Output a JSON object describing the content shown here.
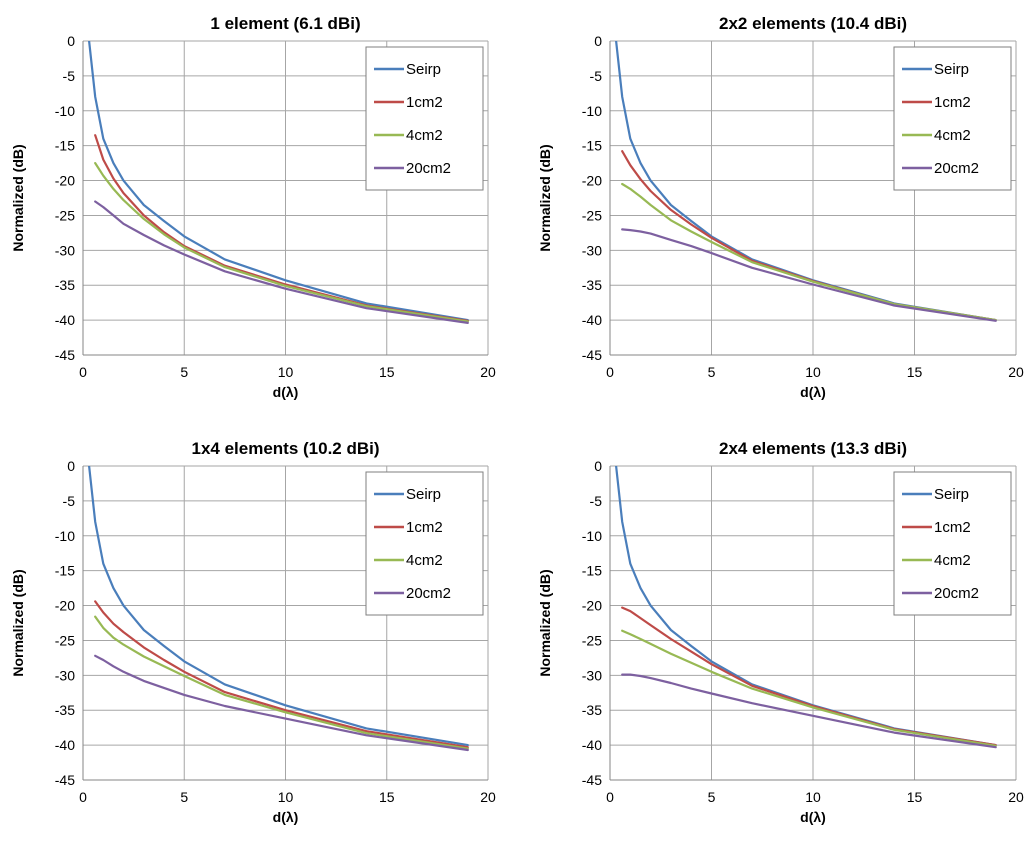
{
  "colors": {
    "grid": "#a6a6a6",
    "axis": "#868686",
    "series": [
      "#4a7ebb",
      "#be4b48",
      "#98b954",
      "#7d60a0"
    ]
  },
  "chart_data": [
    {
      "type": "line",
      "title": "1 element (6.1 dBi)",
      "xlabel": "d(λ)",
      "ylabel": "Normalized (dB)",
      "xlim": [
        0,
        20
      ],
      "ylim": [
        -45,
        0
      ],
      "xticks": [
        "0",
        "5",
        "10",
        "15",
        "20"
      ],
      "yticks": [
        "0",
        "-5",
        "-10",
        "-15",
        "-20",
        "-25",
        "-30",
        "-35",
        "-40",
        "-45"
      ],
      "grid": true,
      "legend_position": "top-right",
      "series": [
        {
          "name": "Seirp",
          "x": [
            0.3,
            0.6,
            1,
            1.5,
            2,
            3,
            4,
            5,
            7,
            10,
            14,
            19
          ],
          "y": [
            0,
            -8,
            -14,
            -17.5,
            -20,
            -23.5,
            -25.8,
            -28,
            -31.3,
            -34.3,
            -37.6,
            -40
          ]
        },
        {
          "name": "1cm2",
          "x": [
            0.6,
            1,
            1.5,
            2,
            3,
            4,
            5,
            7,
            10,
            14,
            19
          ],
          "y": [
            -13.5,
            -17,
            -19.7,
            -21.8,
            -25,
            -27.4,
            -29.4,
            -32.2,
            -34.9,
            -37.9,
            -40.1
          ]
        },
        {
          "name": "4cm2",
          "x": [
            0.6,
            1,
            1.5,
            2,
            3,
            4,
            5,
            7,
            10,
            14,
            19
          ],
          "y": [
            -17.5,
            -19.3,
            -21.2,
            -22.8,
            -25.5,
            -27.7,
            -29.6,
            -32.4,
            -35.1,
            -38,
            -40.2
          ]
        },
        {
          "name": "20cm2",
          "x": [
            0.6,
            1,
            1.5,
            2,
            3,
            4,
            5,
            7,
            10,
            14,
            19
          ],
          "y": [
            -23,
            -23.8,
            -25,
            -26.2,
            -27.8,
            -29.3,
            -30.6,
            -33,
            -35.5,
            -38.3,
            -40.4
          ]
        }
      ]
    },
    {
      "type": "line",
      "title": "2x2 elements (10.4 dBi)",
      "xlabel": "d(λ)",
      "ylabel": "Normalized (dB)",
      "xlim": [
        0,
        20
      ],
      "ylim": [
        -45,
        0
      ],
      "xticks": [
        "0",
        "5",
        "10",
        "15",
        "20"
      ],
      "yticks": [
        "0",
        "-5",
        "-10",
        "-15",
        "-20",
        "-25",
        "-30",
        "-35",
        "-40",
        "-45"
      ],
      "grid": true,
      "legend_position": "top-right",
      "series": [
        {
          "name": "Seirp",
          "x": [
            0.3,
            0.6,
            1,
            1.5,
            2,
            3,
            4,
            5,
            7,
            10,
            14,
            19
          ],
          "y": [
            0,
            -8,
            -14,
            -17.5,
            -20,
            -23.5,
            -25.8,
            -28,
            -31.3,
            -34.3,
            -37.6,
            -40
          ]
        },
        {
          "name": "1cm2",
          "x": [
            0.6,
            1,
            1.5,
            2,
            3,
            4,
            5,
            7,
            10,
            14,
            19
          ],
          "y": [
            -15.8,
            -17.8,
            -19.8,
            -21.5,
            -24.2,
            -26.3,
            -28.2,
            -31.5,
            -34.4,
            -37.7,
            -40
          ]
        },
        {
          "name": "4cm2",
          "x": [
            0.6,
            1,
            1.5,
            2,
            3,
            4,
            5,
            7,
            10,
            14,
            19
          ],
          "y": [
            -20.5,
            -21.2,
            -22.3,
            -23.5,
            -25.7,
            -27.3,
            -28.8,
            -31.7,
            -34.5,
            -37.7,
            -40
          ]
        },
        {
          "name": "20cm2",
          "x": [
            0.6,
            1,
            1.5,
            2,
            3,
            4,
            5,
            7,
            10,
            14,
            19
          ],
          "y": [
            -27,
            -27.1,
            -27.3,
            -27.6,
            -28.5,
            -29.4,
            -30.4,
            -32.5,
            -34.9,
            -37.9,
            -40.1
          ]
        }
      ]
    },
    {
      "type": "line",
      "title": "1x4 elements (10.2 dBi)",
      "xlabel": "d(λ)",
      "ylabel": "Normalized (dB)",
      "xlim": [
        0,
        20
      ],
      "ylim": [
        -45,
        0
      ],
      "xticks": [
        "0",
        "5",
        "10",
        "15",
        "20"
      ],
      "yticks": [
        "0",
        "-5",
        "-10",
        "-15",
        "-20",
        "-25",
        "-30",
        "-35",
        "-40",
        "-45"
      ],
      "grid": true,
      "legend_position": "top-right",
      "series": [
        {
          "name": "Seirp",
          "x": [
            0.3,
            0.6,
            1,
            1.5,
            2,
            3,
            4,
            5,
            7,
            10,
            14,
            19
          ],
          "y": [
            0,
            -8,
            -14,
            -17.5,
            -20,
            -23.5,
            -25.8,
            -28,
            -31.3,
            -34.3,
            -37.6,
            -40
          ]
        },
        {
          "name": "1cm2",
          "x": [
            0.6,
            1,
            1.5,
            2,
            3,
            4,
            5,
            7,
            10,
            14,
            19
          ],
          "y": [
            -19.4,
            -21,
            -22.6,
            -23.8,
            -26,
            -27.8,
            -29.5,
            -32.4,
            -35,
            -38,
            -40.3
          ]
        },
        {
          "name": "4cm2",
          "x": [
            0.6,
            1,
            1.5,
            2,
            3,
            4,
            5,
            7,
            10,
            14,
            19
          ],
          "y": [
            -21.6,
            -23.2,
            -24.6,
            -25.6,
            -27.3,
            -28.7,
            -30.1,
            -32.8,
            -35.3,
            -38.3,
            -40.5
          ]
        },
        {
          "name": "20cm2",
          "x": [
            0.6,
            1,
            1.5,
            2,
            3,
            4,
            5,
            7,
            10,
            14,
            19
          ],
          "y": [
            -27.2,
            -27.8,
            -28.7,
            -29.5,
            -30.8,
            -31.8,
            -32.8,
            -34.4,
            -36.2,
            -38.6,
            -40.7
          ]
        }
      ]
    },
    {
      "type": "line",
      "title": "2x4 elements (13.3 dBi)",
      "xlabel": "d(λ)",
      "ylabel": "Normalized (dB)",
      "xlim": [
        0,
        20
      ],
      "ylim": [
        -45,
        0
      ],
      "xticks": [
        "0",
        "5",
        "10",
        "15",
        "20"
      ],
      "yticks": [
        "0",
        "-5",
        "-10",
        "-15",
        "-20",
        "-25",
        "-30",
        "-35",
        "-40",
        "-45"
      ],
      "grid": true,
      "legend_position": "top-right",
      "series": [
        {
          "name": "Seirp",
          "x": [
            0.3,
            0.6,
            1,
            1.5,
            2,
            3,
            4,
            5,
            7,
            10,
            14,
            19
          ],
          "y": [
            0,
            -8,
            -14,
            -17.5,
            -20,
            -23.5,
            -25.8,
            -28,
            -31.3,
            -34.3,
            -37.6,
            -40
          ]
        },
        {
          "name": "1cm2",
          "x": [
            0.6,
            1,
            1.5,
            2,
            3,
            4,
            5,
            7,
            10,
            14,
            19
          ],
          "y": [
            -20.3,
            -20.8,
            -21.8,
            -22.8,
            -24.8,
            -26.6,
            -28.4,
            -31.5,
            -34.4,
            -37.7,
            -40
          ]
        },
        {
          "name": "4cm2",
          "x": [
            0.6,
            1,
            1.5,
            2,
            3,
            4,
            5,
            7,
            10,
            14,
            19
          ],
          "y": [
            -23.6,
            -24.1,
            -24.8,
            -25.5,
            -26.9,
            -28.2,
            -29.5,
            -31.9,
            -34.6,
            -37.8,
            -40.1
          ]
        },
        {
          "name": "20cm2",
          "x": [
            0.6,
            1,
            1.5,
            2,
            3,
            4,
            5,
            7,
            10,
            14,
            19
          ],
          "y": [
            -29.9,
            -29.9,
            -30.1,
            -30.4,
            -31.1,
            -31.9,
            -32.6,
            -34,
            -35.8,
            -38.2,
            -40.3
          ]
        }
      ]
    }
  ]
}
